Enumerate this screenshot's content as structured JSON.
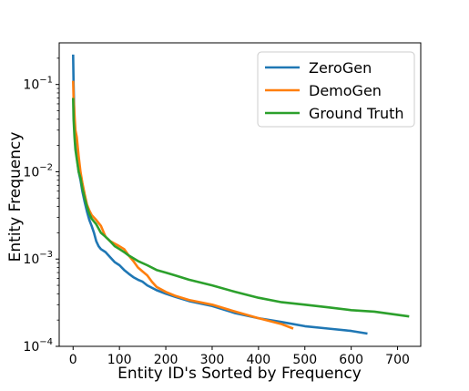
{
  "chart_data": {
    "type": "line",
    "title": "",
    "xlabel": "Entity ID's Sorted by Frequency",
    "ylabel": "Entity Frequency",
    "xlim": [
      -30,
      750
    ],
    "ylim": [
      0.0001,
      0.3
    ],
    "yscale": "log",
    "grid": false,
    "legend_position": "upper-right",
    "x_ticks": [
      0,
      100,
      200,
      300,
      400,
      500,
      600,
      700
    ],
    "x_tick_labels": [
      "0",
      "100",
      "200",
      "300",
      "400",
      "500",
      "600",
      "700"
    ],
    "y_ticks": [
      0.1,
      0.01,
      0.001,
      0.0001
    ],
    "y_tick_labels": [
      {
        "base": "10",
        "exp": "−1"
      },
      {
        "base": "10",
        "exp": "−2"
      },
      {
        "base": "10",
        "exp": "−3"
      },
      {
        "base": "10",
        "exp": "−4"
      }
    ],
    "series": [
      {
        "name": "ZeroGen",
        "color": "#1f77b4",
        "points": [
          [
            0,
            0.22
          ],
          [
            1,
            0.1
          ],
          [
            2,
            0.06
          ],
          [
            3,
            0.035
          ],
          [
            5,
            0.02
          ],
          [
            8,
            0.015
          ],
          [
            12,
            0.01
          ],
          [
            16,
            0.008
          ],
          [
            20,
            0.006
          ],
          [
            25,
            0.0045
          ],
          [
            30,
            0.0035
          ],
          [
            35,
            0.0028
          ],
          [
            40,
            0.0024
          ],
          [
            45,
            0.002
          ],
          [
            50,
            0.0016
          ],
          [
            55,
            0.0014
          ],
          [
            60,
            0.0013
          ],
          [
            70,
            0.0012
          ],
          [
            80,
            0.00105
          ],
          [
            90,
            0.00092
          ],
          [
            100,
            0.00085
          ],
          [
            110,
            0.00075
          ],
          [
            120,
            0.00068
          ],
          [
            130,
            0.00062
          ],
          [
            140,
            0.00058
          ],
          [
            150,
            0.00055
          ],
          [
            160,
            0.0005
          ],
          [
            180,
            0.00044
          ],
          [
            200,
            0.0004
          ],
          [
            220,
            0.00037
          ],
          [
            250,
            0.00033
          ],
          [
            300,
            0.00029
          ],
          [
            350,
            0.00024
          ],
          [
            400,
            0.00021
          ],
          [
            450,
            0.00019
          ],
          [
            500,
            0.00017
          ],
          [
            550,
            0.00016
          ],
          [
            600,
            0.00015
          ],
          [
            635,
            0.00014
          ]
        ]
      },
      {
        "name": "DemoGen",
        "color": "#ff7f0e",
        "points": [
          [
            0,
            0.11
          ],
          [
            1,
            0.07
          ],
          [
            3,
            0.045
          ],
          [
            5,
            0.03
          ],
          [
            8,
            0.025
          ],
          [
            12,
            0.015
          ],
          [
            16,
            0.01
          ],
          [
            20,
            0.0075
          ],
          [
            25,
            0.0055
          ],
          [
            30,
            0.0042
          ],
          [
            35,
            0.0036
          ],
          [
            40,
            0.0032
          ],
          [
            50,
            0.0028
          ],
          [
            60,
            0.0024
          ],
          [
            70,
            0.0018
          ],
          [
            80,
            0.0016
          ],
          [
            90,
            0.0015
          ],
          [
            100,
            0.0014
          ],
          [
            110,
            0.0013
          ],
          [
            120,
            0.0011
          ],
          [
            130,
            0.00095
          ],
          [
            140,
            0.0008
          ],
          [
            150,
            0.00072
          ],
          [
            160,
            0.00065
          ],
          [
            170,
            0.00055
          ],
          [
            180,
            0.00048
          ],
          [
            200,
            0.00042
          ],
          [
            220,
            0.00038
          ],
          [
            250,
            0.00034
          ],
          [
            300,
            0.0003
          ],
          [
            350,
            0.00025
          ],
          [
            400,
            0.00021
          ],
          [
            450,
            0.00018
          ],
          [
            475,
            0.00016
          ]
        ]
      },
      {
        "name": "Ground Truth",
        "color": "#2ca02c",
        "points": [
          [
            0,
            0.07
          ],
          [
            1,
            0.04
          ],
          [
            3,
            0.025
          ],
          [
            5,
            0.018
          ],
          [
            8,
            0.014
          ],
          [
            12,
            0.01
          ],
          [
            16,
            0.0085
          ],
          [
            20,
            0.0065
          ],
          [
            25,
            0.005
          ],
          [
            30,
            0.004
          ],
          [
            35,
            0.0033
          ],
          [
            40,
            0.0029
          ],
          [
            50,
            0.0025
          ],
          [
            60,
            0.002
          ],
          [
            70,
            0.0018
          ],
          [
            80,
            0.0016
          ],
          [
            90,
            0.0014
          ],
          [
            100,
            0.0013
          ],
          [
            110,
            0.0012
          ],
          [
            120,
            0.0011
          ],
          [
            140,
            0.00095
          ],
          [
            160,
            0.00085
          ],
          [
            180,
            0.00075
          ],
          [
            200,
            0.0007
          ],
          [
            220,
            0.00065
          ],
          [
            250,
            0.00058
          ],
          [
            300,
            0.0005
          ],
          [
            350,
            0.00042
          ],
          [
            400,
            0.00036
          ],
          [
            450,
            0.00032
          ],
          [
            500,
            0.0003
          ],
          [
            550,
            0.00028
          ],
          [
            600,
            0.00026
          ],
          [
            650,
            0.00025
          ],
          [
            700,
            0.00023
          ],
          [
            725,
            0.00022
          ]
        ]
      }
    ]
  }
}
